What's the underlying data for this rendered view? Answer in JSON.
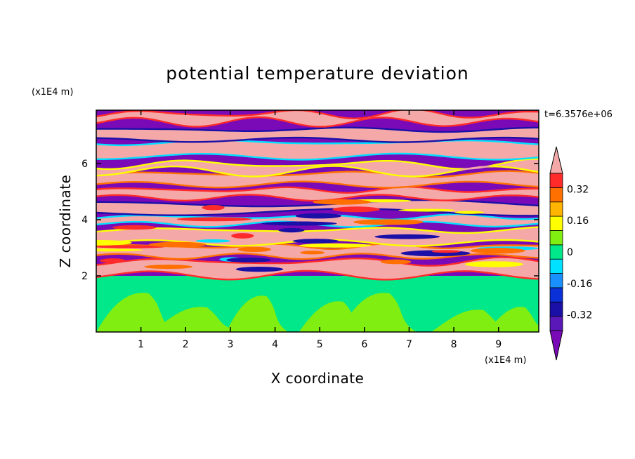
{
  "chart_data": {
    "type": "heatmap",
    "title": "potential temperature deviation",
    "xlabel": "X coordinate",
    "ylabel": "Z coordinate",
    "x_unit": "(x1E4 m)",
    "y_unit": "(x1E4 m)",
    "time_label": "t=6.3576e+06",
    "xlim": [
      0,
      9.9
    ],
    "ylim": [
      0,
      7.9
    ],
    "x_ticks": [
      "1",
      "2",
      "3",
      "4",
      "5",
      "6",
      "7",
      "8",
      "9"
    ],
    "y_ticks": [
      "2",
      "4",
      "6"
    ],
    "grid": false,
    "colorbar": {
      "levels": [
        -0.48,
        -0.4,
        -0.32,
        -0.24,
        -0.16,
        -0.08,
        0,
        0.08,
        0.16,
        0.24,
        0.32,
        0.4,
        0.48
      ],
      "tick_labels": [
        "0.32",
        "0.16",
        "0",
        "-0.16",
        "-0.32"
      ],
      "colors": [
        "#7a0ab8",
        "#5a18b8",
        "#1a10a8",
        "#0a30d8",
        "#1a90ff",
        "#00e0ff",
        "#00e88a",
        "#80ee10",
        "#ffff00",
        "#ffb400",
        "#ff7000",
        "#ff2a2a",
        "#f4a8a8"
      ],
      "extend": "both"
    },
    "regions": {
      "lower_layer_top_z": 2.0,
      "lower_layer_colors": [
        "#00e88a",
        "#80ee10"
      ],
      "upper_band_colors": [
        "#f4a8a8",
        "#7a0ab8"
      ],
      "transition_colors": [
        "#ff2a2a",
        "#ff7000",
        "#ffff00",
        "#00e0ff",
        "#1a10a8"
      ]
    }
  }
}
